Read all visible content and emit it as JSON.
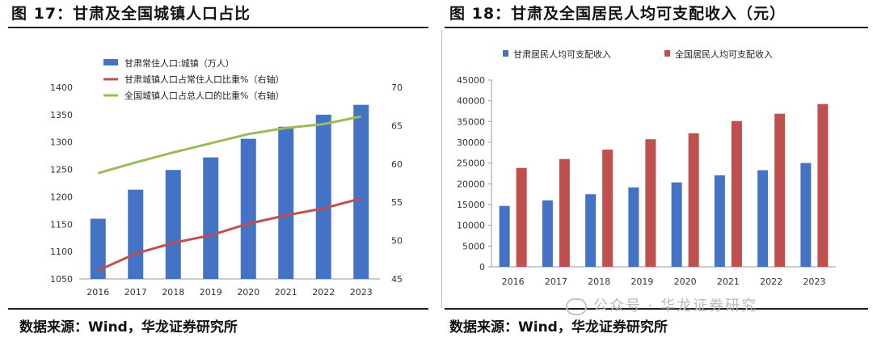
{
  "titles": {
    "left": "图 17：甘肃及全国城镇人口占比",
    "right": "图 18：甘肃及全国居民人均可支配收入（元）"
  },
  "sources": {
    "left": "数据来源：Wind，华龙证券研究所",
    "right": "数据来源：Wind，华龙证券研究所"
  },
  "watermark": "公众号 · 华龙证券研究",
  "colors": {
    "blue": "#4472C4",
    "red": "#C0504D",
    "green": "#9BBB59"
  },
  "chart_data": [
    {
      "type": "bar+line",
      "title": "图 17：甘肃及全国城镇人口占比",
      "categories": [
        "2016",
        "2017",
        "2018",
        "2019",
        "2020",
        "2021",
        "2022",
        "2023"
      ],
      "series": [
        {
          "name": "甘肃常住人口:城镇（万人）",
          "type": "bar",
          "axis": "left",
          "values": [
            1160,
            1213,
            1249,
            1272,
            1306,
            1328,
            1350,
            1368
          ]
        },
        {
          "name": "甘肃城镇人口占常住人口比重%（右轴）",
          "type": "line",
          "axis": "right",
          "values": [
            46.1,
            48.3,
            49.7,
            50.7,
            52.2,
            53.3,
            54.2,
            55.5
          ]
        },
        {
          "name": "全国城镇人口占总人口的比重%（右轴）",
          "type": "line",
          "axis": "right",
          "values": [
            58.8,
            60.2,
            61.5,
            62.7,
            63.9,
            64.7,
            65.2,
            66.2
          ]
        }
      ],
      "ylim_left": [
        1050,
        1400
      ],
      "yticks_left": [
        1050,
        1100,
        1150,
        1200,
        1250,
        1300,
        1350,
        1400
      ],
      "ylim_right": [
        45,
        70
      ],
      "yticks_right": [
        45,
        50,
        55,
        60,
        65,
        70
      ]
    },
    {
      "type": "bar",
      "title": "图 18：甘肃及全国居民人均可支配收入（元）",
      "categories": [
        "2016",
        "2017",
        "2018",
        "2019",
        "2020",
        "2021",
        "2022",
        "2023"
      ],
      "series": [
        {
          "name": "甘肃居民人均可支配收入",
          "values": [
            14670,
            16011,
            17488,
            19139,
            20335,
            22066,
            23273,
            25011
          ]
        },
        {
          "name": "全国居民人均可支配收入",
          "values": [
            23821,
            25974,
            28228,
            30733,
            32189,
            35128,
            36883,
            39218
          ]
        }
      ],
      "ylim": [
        0,
        45000
      ],
      "yticks": [
        0,
        5000,
        10000,
        15000,
        20000,
        25000,
        30000,
        35000,
        40000,
        45000
      ]
    }
  ]
}
